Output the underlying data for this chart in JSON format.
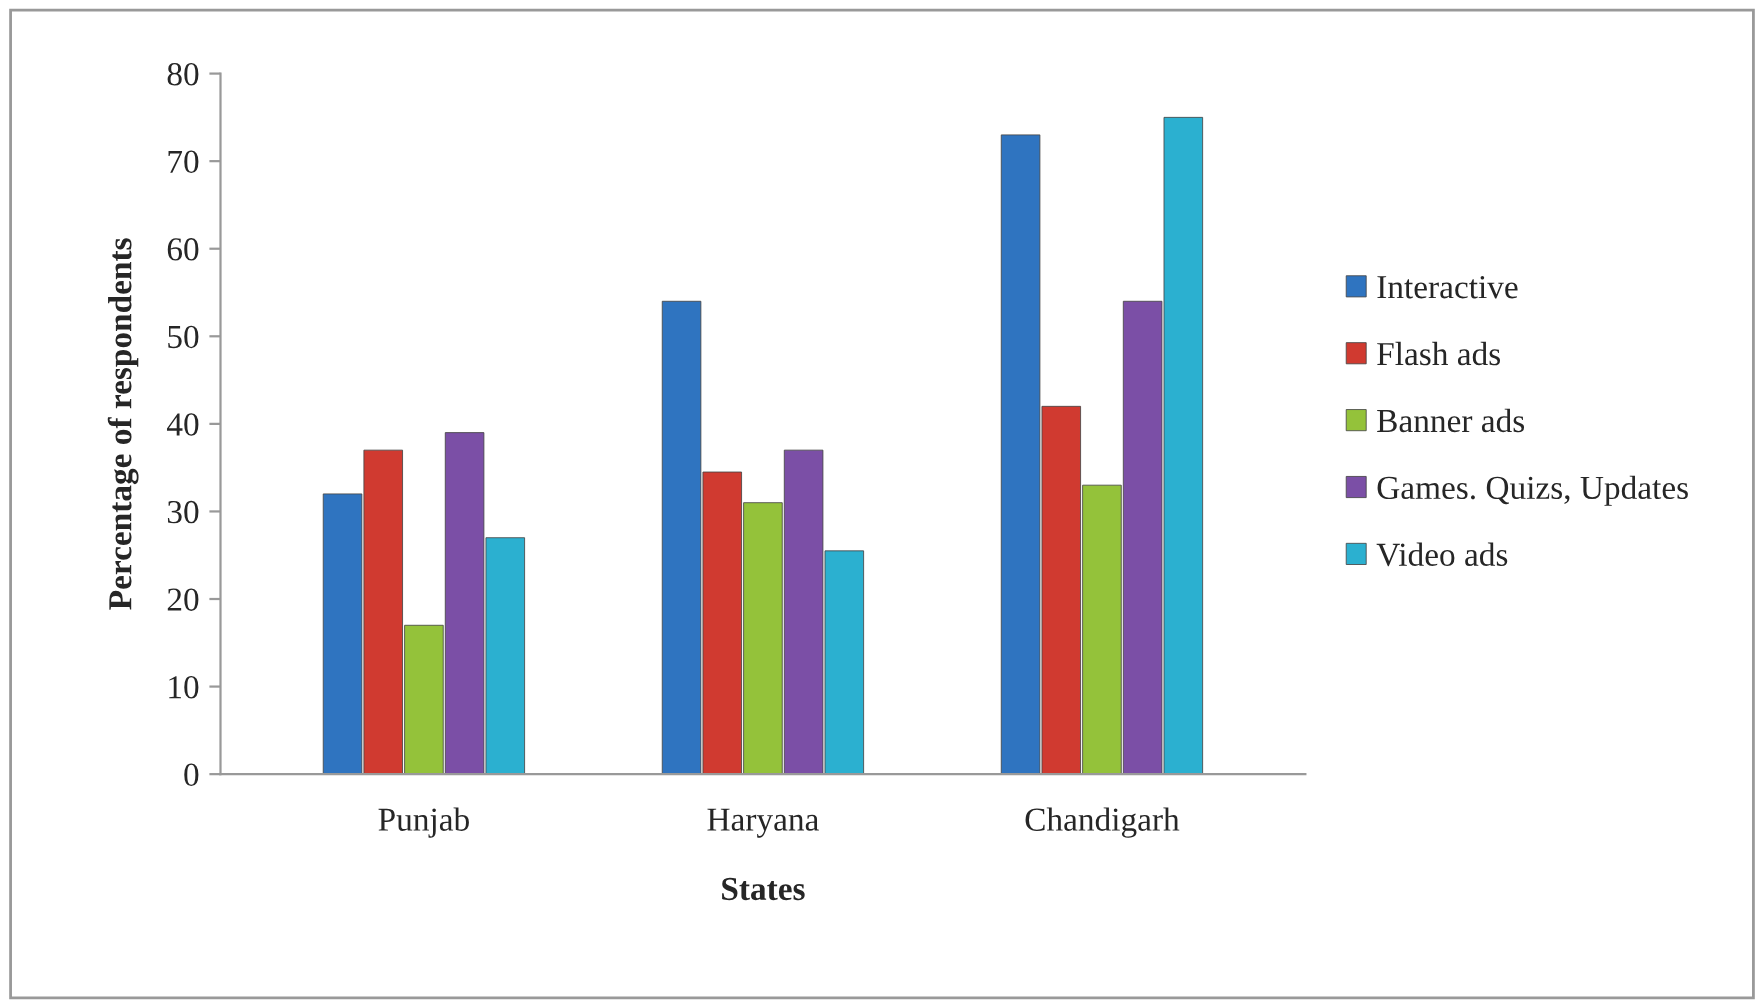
{
  "chart_data": {
    "type": "bar",
    "xlabel": "States",
    "ylabel": "Percentage of respondents",
    "categories": [
      "Punjab",
      "Haryana",
      "Chandigarh"
    ],
    "series": [
      {
        "name": "Interactive",
        "color": "#2f74c0",
        "values": [
          32,
          54,
          73
        ]
      },
      {
        "name": "Flash ads",
        "color": "#d03a30",
        "values": [
          37,
          34.5,
          42
        ]
      },
      {
        "name": "Banner ads",
        "color": "#94c23a",
        "values": [
          17,
          31,
          33
        ]
      },
      {
        "name": "Games. Quizs, Updates",
        "color": "#7b4fa6",
        "values": [
          39,
          37,
          54
        ]
      },
      {
        "name": "Video ads",
        "color": "#2bb0d0",
        "values": [
          27,
          25.5,
          75
        ]
      }
    ],
    "ylim": [
      0,
      80
    ],
    "yticks": [
      0,
      10,
      20,
      30,
      40,
      50,
      60,
      70,
      80
    ],
    "grid": false,
    "legend": "right"
  }
}
